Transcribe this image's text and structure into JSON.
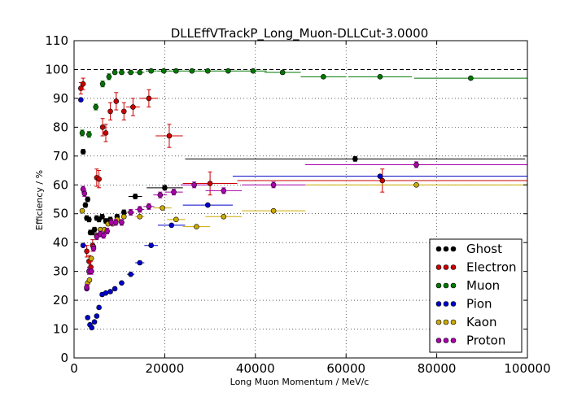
{
  "chart_data": {
    "type": "scatter",
    "title": "DLLEffVTrackP_Long_Muon-DLLCut-3.0000",
    "xlabel": "Long Muon Momentum / MeV/c",
    "ylabel": "Efficiency / %",
    "xlim": [
      0,
      100000
    ],
    "ylim": [
      0,
      110
    ],
    "x_ticks": [
      0,
      20000,
      40000,
      60000,
      80000,
      100000
    ],
    "x_tick_labels": [
      "0",
      "20000",
      "40000",
      "60000",
      "80000",
      "100000"
    ],
    "y_ticks": [
      0,
      10,
      20,
      30,
      40,
      50,
      60,
      70,
      80,
      90,
      100,
      110
    ],
    "y_tick_labels": [
      "0",
      "10",
      "20",
      "30",
      "40",
      "50",
      "60",
      "70",
      "80",
      "90",
      "100",
      "110"
    ],
    "grid": true,
    "reference_line_y": 100,
    "legend_position": "bottom-right",
    "series": [
      {
        "name": "Ghost",
        "color": "#000000",
        "points": [
          {
            "x": 2000,
            "y": 71.5,
            "xerr": 0,
            "yerr": 0.8
          },
          {
            "x": 2500,
            "y": 53,
            "xerr": 0,
            "yerr": 0.8
          },
          {
            "x": 2800,
            "y": 48.5,
            "xerr": 0,
            "yerr": 0.8
          },
          {
            "x": 3000,
            "y": 55,
            "xerr": 0,
            "yerr": 0.8
          },
          {
            "x": 3300,
            "y": 48,
            "xerr": 0,
            "yerr": 0.8
          },
          {
            "x": 3600,
            "y": 43.5,
            "xerr": 0,
            "yerr": 0.8
          },
          {
            "x": 4000,
            "y": 43.5,
            "xerr": 0,
            "yerr": 0.8
          },
          {
            "x": 4500,
            "y": 44.5,
            "xerr": 0,
            "yerr": 0.8
          },
          {
            "x": 5000,
            "y": 48.5,
            "xerr": 0,
            "yerr": 0.8
          },
          {
            "x": 5500,
            "y": 48,
            "xerr": 0,
            "yerr": 0.8
          },
          {
            "x": 6200,
            "y": 49,
            "xerr": 0,
            "yerr": 0.8
          },
          {
            "x": 7000,
            "y": 47.5,
            "xerr": 0,
            "yerr": 0.8
          },
          {
            "x": 8000,
            "y": 48,
            "xerr": 0,
            "yerr": 0.8
          },
          {
            "x": 9500,
            "y": 49,
            "xerr": 0,
            "yerr": 0.8
          },
          {
            "x": 11000,
            "y": 50.5,
            "xerr": 0,
            "yerr": 0.8
          },
          {
            "x": 13500,
            "y": 56,
            "xerr": 1500,
            "yerr": 0.8
          },
          {
            "x": 20000,
            "y": 59,
            "xerr": 4000,
            "yerr": 0.8
          },
          {
            "x": 62000,
            "y": 69,
            "xerr": 37500,
            "yerr": 0.8
          }
        ]
      },
      {
        "name": "Electron",
        "color": "#cc0000",
        "points": [
          {
            "x": 1500,
            "y": 93.5,
            "xerr": 0,
            "yerr": 2
          },
          {
            "x": 2000,
            "y": 95,
            "xerr": 0,
            "yerr": 2
          },
          {
            "x": 2800,
            "y": 37,
            "xerr": 0,
            "yerr": 2
          },
          {
            "x": 3300,
            "y": 33.5,
            "xerr": 0,
            "yerr": 2
          },
          {
            "x": 3700,
            "y": 31.5,
            "xerr": 0,
            "yerr": 2
          },
          {
            "x": 4100,
            "y": 39,
            "xerr": 0,
            "yerr": 2
          },
          {
            "x": 5000,
            "y": 62.5,
            "xerr": 0,
            "yerr": 3
          },
          {
            "x": 5500,
            "y": 62,
            "xerr": 0,
            "yerr": 3
          },
          {
            "x": 6300,
            "y": 80,
            "xerr": 0,
            "yerr": 3
          },
          {
            "x": 7000,
            "y": 78,
            "xerr": 0,
            "yerr": 3
          },
          {
            "x": 8000,
            "y": 85.5,
            "xerr": 0,
            "yerr": 3
          },
          {
            "x": 9300,
            "y": 89,
            "xerr": 0,
            "yerr": 3
          },
          {
            "x": 11000,
            "y": 85.5,
            "xerr": 0,
            "yerr": 3
          },
          {
            "x": 13000,
            "y": 87,
            "xerr": 1500,
            "yerr": 3
          },
          {
            "x": 16500,
            "y": 90,
            "xerr": 2000,
            "yerr": 3
          },
          {
            "x": 21000,
            "y": 77,
            "xerr": 3000,
            "yerr": 4
          },
          {
            "x": 30000,
            "y": 60.5,
            "xerr": 6000,
            "yerr": 4
          },
          {
            "x": 68000,
            "y": 61.5,
            "xerr": 32000,
            "yerr": 4
          }
        ]
      },
      {
        "name": "Muon",
        "color": "#007700",
        "points": [
          {
            "x": 1800,
            "y": 78,
            "xerr": 300,
            "yerr": 1
          },
          {
            "x": 3300,
            "y": 77.5,
            "xerr": 300,
            "yerr": 1
          },
          {
            "x": 4800,
            "y": 87,
            "xerr": 500,
            "yerr": 1
          },
          {
            "x": 6300,
            "y": 95,
            "xerr": 500,
            "yerr": 1
          },
          {
            "x": 7700,
            "y": 97.5,
            "xerr": 500,
            "yerr": 1
          },
          {
            "x": 9000,
            "y": 99,
            "xerr": 600,
            "yerr": 0.5
          },
          {
            "x": 10500,
            "y": 99,
            "xerr": 700,
            "yerr": 0.5
          },
          {
            "x": 12500,
            "y": 99,
            "xerr": 800,
            "yerr": 0.5
          },
          {
            "x": 14500,
            "y": 99,
            "xerr": 1000,
            "yerr": 0.5
          },
          {
            "x": 17000,
            "y": 99.5,
            "xerr": 1200,
            "yerr": 0.5
          },
          {
            "x": 19800,
            "y": 99.5,
            "xerr": 1500,
            "yerr": 0.5
          },
          {
            "x": 22500,
            "y": 99.5,
            "xerr": 1500,
            "yerr": 0.5
          },
          {
            "x": 26000,
            "y": 99.5,
            "xerr": 2000,
            "yerr": 0.5
          },
          {
            "x": 29500,
            "y": 99.5,
            "xerr": 2000,
            "yerr": 0.5
          },
          {
            "x": 34000,
            "y": 99.5,
            "xerr": 2500,
            "yerr": 0.5
          },
          {
            "x": 39500,
            "y": 99.5,
            "xerr": 3000,
            "yerr": 0.5
          },
          {
            "x": 46000,
            "y": 99,
            "xerr": 4000,
            "yerr": 0.5
          },
          {
            "x": 55000,
            "y": 97.5,
            "xerr": 5000,
            "yerr": 0.5
          },
          {
            "x": 67500,
            "y": 97.5,
            "xerr": 7000,
            "yerr": 0.5
          },
          {
            "x": 87500,
            "y": 97,
            "xerr": 12500,
            "yerr": 0.5
          }
        ]
      },
      {
        "name": "Pion",
        "color": "#0000cc",
        "points": [
          {
            "x": 1500,
            "y": 89.5,
            "xerr": 0,
            "yerr": 0.5
          },
          {
            "x": 2000,
            "y": 39,
            "xerr": 0,
            "yerr": 0.5
          },
          {
            "x": 2800,
            "y": 24,
            "xerr": 0,
            "yerr": 0.5
          },
          {
            "x": 3000,
            "y": 14,
            "xerr": 0,
            "yerr": 0.5
          },
          {
            "x": 3500,
            "y": 11.5,
            "xerr": 0,
            "yerr": 0.5
          },
          {
            "x": 3900,
            "y": 10.5,
            "xerr": 0,
            "yerr": 0.5
          },
          {
            "x": 4500,
            "y": 12.5,
            "xerr": 0,
            "yerr": 0.5
          },
          {
            "x": 5000,
            "y": 14.5,
            "xerr": 0,
            "yerr": 0.5
          },
          {
            "x": 5500,
            "y": 17.5,
            "xerr": 0,
            "yerr": 0.5
          },
          {
            "x": 6200,
            "y": 22,
            "xerr": 0,
            "yerr": 0.5
          },
          {
            "x": 7000,
            "y": 22.5,
            "xerr": 0,
            "yerr": 0.5
          },
          {
            "x": 8000,
            "y": 23,
            "xerr": 0,
            "yerr": 0.5
          },
          {
            "x": 9000,
            "y": 24,
            "xerr": 0,
            "yerr": 0.5
          },
          {
            "x": 10500,
            "y": 26,
            "xerr": 600,
            "yerr": 0.5
          },
          {
            "x": 12500,
            "y": 29,
            "xerr": 800,
            "yerr": 0.5
          },
          {
            "x": 14500,
            "y": 33,
            "xerr": 1000,
            "yerr": 0.5
          },
          {
            "x": 17000,
            "y": 39,
            "xerr": 1500,
            "yerr": 0.5
          },
          {
            "x": 21500,
            "y": 46,
            "xerr": 3000,
            "yerr": 0.5
          },
          {
            "x": 29500,
            "y": 53,
            "xerr": 5500,
            "yerr": 0.5
          },
          {
            "x": 67500,
            "y": 63,
            "xerr": 32500,
            "yerr": 0.5
          }
        ]
      },
      {
        "name": "Kaon",
        "color": "#ccaa00",
        "points": [
          {
            "x": 1800,
            "y": 51,
            "xerr": 0,
            "yerr": 0.5
          },
          {
            "x": 3000,
            "y": 26,
            "xerr": 0,
            "yerr": 0.5
          },
          {
            "x": 3400,
            "y": 27,
            "xerr": 0,
            "yerr": 0.5
          },
          {
            "x": 3800,
            "y": 34.5,
            "xerr": 0,
            "yerr": 0.5
          },
          {
            "x": 4300,
            "y": 38.5,
            "xerr": 0,
            "yerr": 0.5
          },
          {
            "x": 5000,
            "y": 42.5,
            "xerr": 0,
            "yerr": 0.5
          },
          {
            "x": 5800,
            "y": 44.5,
            "xerr": 0,
            "yerr": 0.5
          },
          {
            "x": 6700,
            "y": 44.5,
            "xerr": 0,
            "yerr": 0.5
          },
          {
            "x": 7500,
            "y": 46.5,
            "xerr": 0,
            "yerr": 0.5
          },
          {
            "x": 8500,
            "y": 46.5,
            "xerr": 0,
            "yerr": 0.5
          },
          {
            "x": 9500,
            "y": 48,
            "xerr": 0,
            "yerr": 0.5
          },
          {
            "x": 11000,
            "y": 49,
            "xerr": 600,
            "yerr": 0.5
          },
          {
            "x": 14500,
            "y": 49,
            "xerr": 1000,
            "yerr": 0.5
          },
          {
            "x": 19500,
            "y": 52,
            "xerr": 2000,
            "yerr": 0.5
          },
          {
            "x": 22500,
            "y": 48,
            "xerr": 2000,
            "yerr": 0.5
          },
          {
            "x": 27000,
            "y": 45.5,
            "xerr": 3000,
            "yerr": 0.5
          },
          {
            "x": 33000,
            "y": 49,
            "xerr": 4000,
            "yerr": 0.5
          },
          {
            "x": 44000,
            "y": 51,
            "xerr": 7000,
            "yerr": 0.5
          },
          {
            "x": 75500,
            "y": 60,
            "xerr": 24500,
            "yerr": 0.5
          }
        ]
      },
      {
        "name": "Proton",
        "color": "#aa00aa",
        "points": [
          {
            "x": 2000,
            "y": 58.5,
            "xerr": 0,
            "yerr": 1
          },
          {
            "x": 2300,
            "y": 57,
            "xerr": 0,
            "yerr": 1
          },
          {
            "x": 2800,
            "y": 24.5,
            "xerr": 0,
            "yerr": 1
          },
          {
            "x": 3300,
            "y": 30,
            "xerr": 0,
            "yerr": 1
          },
          {
            "x": 3800,
            "y": 30,
            "xerr": 0,
            "yerr": 1
          },
          {
            "x": 4300,
            "y": 38,
            "xerr": 0,
            "yerr": 1
          },
          {
            "x": 5000,
            "y": 42,
            "xerr": 0,
            "yerr": 1
          },
          {
            "x": 5800,
            "y": 43,
            "xerr": 0,
            "yerr": 1
          },
          {
            "x": 6500,
            "y": 42.5,
            "xerr": 0,
            "yerr": 1
          },
          {
            "x": 7300,
            "y": 44,
            "xerr": 0,
            "yerr": 1
          },
          {
            "x": 8200,
            "y": 47,
            "xerr": 0,
            "yerr": 1
          },
          {
            "x": 9200,
            "y": 47,
            "xerr": 0,
            "yerr": 1
          },
          {
            "x": 10500,
            "y": 47,
            "xerr": 600,
            "yerr": 1
          },
          {
            "x": 12500,
            "y": 50.5,
            "xerr": 800,
            "yerr": 1
          },
          {
            "x": 14500,
            "y": 51.5,
            "xerr": 1000,
            "yerr": 1
          },
          {
            "x": 16500,
            "y": 52.5,
            "xerr": 1200,
            "yerr": 1
          },
          {
            "x": 19000,
            "y": 56.5,
            "xerr": 1500,
            "yerr": 1
          },
          {
            "x": 22000,
            "y": 57.5,
            "xerr": 2000,
            "yerr": 1
          },
          {
            "x": 26500,
            "y": 60,
            "xerr": 3000,
            "yerr": 1
          },
          {
            "x": 33000,
            "y": 58,
            "xerr": 4000,
            "yerr": 1
          },
          {
            "x": 44000,
            "y": 60,
            "xerr": 7000,
            "yerr": 1
          },
          {
            "x": 75500,
            "y": 67,
            "xerr": 24500,
            "yerr": 1
          }
        ]
      }
    ]
  }
}
